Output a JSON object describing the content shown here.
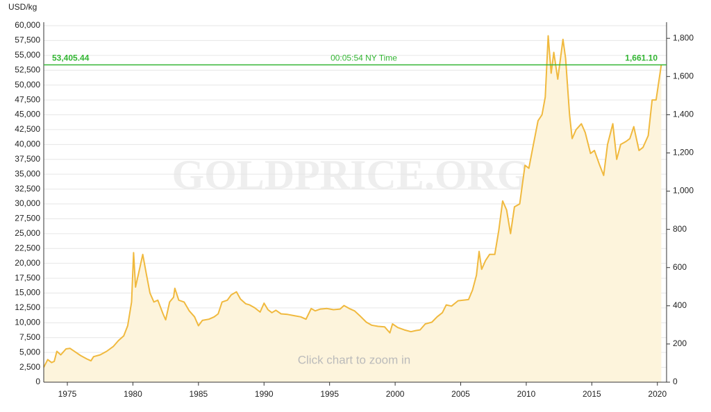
{
  "chart_data": {
    "type": "line",
    "y_label": "USD/kg",
    "watermark": "GOLDPRICE.ORG",
    "hint": "Click chart to zoom in",
    "x": [
      1973.2,
      1973.5,
      1973.8,
      1974.0,
      1974.2,
      1974.5,
      1974.9,
      1975.2,
      1975.6,
      1976.0,
      1976.5,
      1976.8,
      1977.0,
      1977.5,
      1978.0,
      1978.5,
      1978.9,
      1979.3,
      1979.6,
      1979.9,
      1980.05,
      1980.2,
      1980.5,
      1980.75,
      1981.0,
      1981.3,
      1981.6,
      1981.9,
      1982.3,
      1982.5,
      1982.8,
      1983.1,
      1983.2,
      1983.5,
      1983.9,
      1984.3,
      1984.7,
      1985.0,
      1985.3,
      1985.8,
      1986.2,
      1986.5,
      1986.8,
      1987.2,
      1987.5,
      1987.9,
      1988.2,
      1988.6,
      1988.9,
      1989.3,
      1989.7,
      1990.0,
      1990.3,
      1990.6,
      1990.9,
      1991.3,
      1991.8,
      1992.3,
      1992.8,
      1993.2,
      1993.6,
      1993.9,
      1994.3,
      1994.8,
      1995.3,
      1995.8,
      1996.1,
      1996.5,
      1996.9,
      1997.3,
      1997.8,
      1998.2,
      1998.7,
      1999.2,
      1999.6,
      1999.8,
      2000.2,
      2000.7,
      2001.2,
      2001.6,
      2001.9,
      2002.3,
      2002.8,
      2003.2,
      2003.6,
      2003.9,
      2004.3,
      2004.8,
      2005.2,
      2005.6,
      2005.9,
      2006.2,
      2006.4,
      2006.6,
      2006.9,
      2007.2,
      2007.6,
      2007.9,
      2008.2,
      2008.5,
      2008.8,
      2009.1,
      2009.5,
      2009.9,
      2010.2,
      2010.5,
      2010.9,
      2011.2,
      2011.45,
      2011.67,
      2011.9,
      2012.1,
      2012.4,
      2012.8,
      2013.0,
      2013.3,
      2013.5,
      2013.8,
      2014.2,
      2014.5,
      2014.9,
      2015.2,
      2015.6,
      2015.9,
      2016.2,
      2016.6,
      2016.9,
      2017.2,
      2017.6,
      2017.9,
      2018.2,
      2018.6,
      2018.9,
      2019.3,
      2019.6,
      2019.9,
      2020.1,
      2020.3
    ],
    "series": [
      {
        "color": "#f0b93e",
        "fill": "#fdf4dc",
        "values": [
          2500,
          3800,
          3300,
          3500,
          5200,
          4600,
          5600,
          5700,
          5100,
          4500,
          3900,
          3600,
          4300,
          4600,
          5200,
          6000,
          7000,
          7800,
          9500,
          13500,
          21800,
          16000,
          19000,
          21500,
          18500,
          15000,
          13500,
          13800,
          11500,
          10500,
          13500,
          14300,
          15800,
          13800,
          13500,
          12000,
          11000,
          9500,
          10400,
          10600,
          11000,
          11500,
          13500,
          13800,
          14700,
          15200,
          14000,
          13200,
          13000,
          12500,
          11800,
          13300,
          12200,
          11700,
          12100,
          11500,
          11400,
          11200,
          11000,
          10600,
          12400,
          12000,
          12300,
          12400,
          12200,
          12300,
          12900,
          12400,
          12000,
          11200,
          10100,
          9600,
          9400,
          9300,
          8300,
          9800,
          9200,
          8800,
          8500,
          8700,
          8800,
          9800,
          10100,
          11000,
          11700,
          13000,
          12800,
          13700,
          13800,
          13900,
          15500,
          18000,
          22000,
          19000,
          20500,
          21500,
          21500,
          25500,
          30500,
          29000,
          25000,
          29500,
          30000,
          36500,
          36000,
          39500,
          44000,
          45000,
          48000,
          58300,
          52000,
          55500,
          51000,
          57700,
          54500,
          45000,
          41000,
          42500,
          43500,
          42000,
          38500,
          39000,
          36500,
          34800,
          40000,
          43500,
          37500,
          40000,
          40500,
          41000,
          43000,
          39000,
          39500,
          41500,
          47500,
          47500,
          50500,
          53405.44
        ]
      }
    ],
    "xlim": [
      1973.2,
      2020.7
    ],
    "xticks": [
      1975,
      1980,
      1985,
      1990,
      1995,
      2000,
      2005,
      2010,
      2015,
      2020
    ],
    "ylim": [
      0,
      60000
    ],
    "yticks": [
      0,
      {
        "value": 2500,
        "label": "2,500"
      },
      {
        "value": 5000,
        "label": "5,000"
      },
      {
        "value": 7500,
        "label": "7,500"
      },
      {
        "value": 10000,
        "label": "10,000"
      },
      {
        "value": 12500,
        "label": "12,500"
      },
      {
        "value": 15000,
        "label": "15,000"
      },
      {
        "value": 17500,
        "label": "17,500"
      },
      {
        "value": 20000,
        "label": "20,000"
      },
      {
        "value": 22500,
        "label": "22,500"
      },
      {
        "value": 25000,
        "label": "25,000"
      },
      {
        "value": 27500,
        "label": "27,500"
      },
      {
        "value": 30000,
        "label": "30,000"
      },
      {
        "value": 32500,
        "label": "32,500"
      },
      {
        "value": 35000,
        "label": "35,000"
      },
      {
        "value": 37500,
        "label": "37,500"
      },
      {
        "value": 40000,
        "label": "40,000"
      },
      {
        "value": 42500,
        "label": "42,500"
      },
      {
        "value": 45000,
        "label": "45,000"
      },
      {
        "value": 47500,
        "label": "47,500"
      },
      {
        "value": 50000,
        "label": "50,000"
      },
      {
        "value": 52500,
        "label": "52,500"
      },
      {
        "value": 55000,
        "label": "55,000"
      },
      {
        "value": 57500,
        "label": "57,500"
      },
      {
        "value": 60000,
        "label": "60,000"
      }
    ],
    "y2lim": [
      0,
      1866.2
    ],
    "y2ticks": [
      0,
      200,
      400,
      600,
      800,
      {
        "value": 1000,
        "label": "1,000"
      },
      {
        "value": 1200,
        "label": "1,200"
      },
      {
        "value": 1400,
        "label": "1,400"
      },
      {
        "value": 1600,
        "label": "1,600"
      },
      {
        "value": 1800,
        "label": "1,800"
      }
    ],
    "grid": true,
    "current_price": {
      "value": 53405.44,
      "label": "53,405.44",
      "label_oz": "1,661.10",
      "time": "00:05:54 NY Time",
      "color": "#33b533"
    }
  }
}
